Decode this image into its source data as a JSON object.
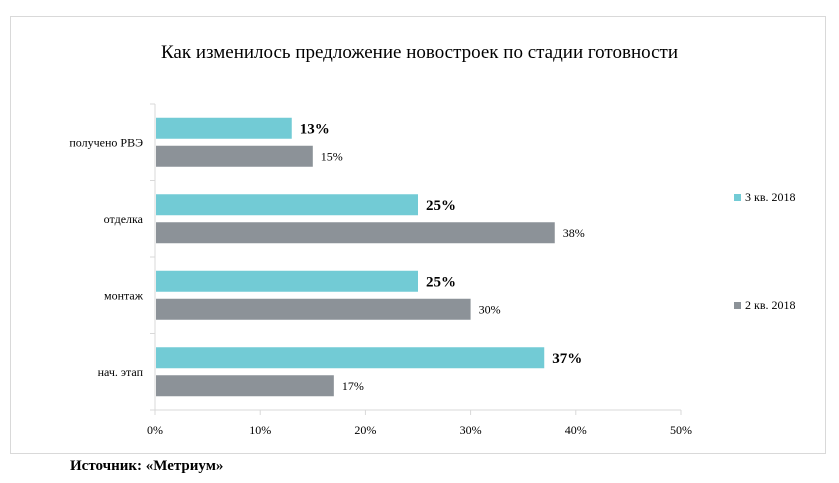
{
  "chart_data": {
    "type": "bar",
    "orientation": "horizontal",
    "title": "Как изменилось предложение новостроек по стадии готовности",
    "categories": [
      "получено РВЭ",
      "отделка",
      "монтаж",
      "нач. этап"
    ],
    "series": [
      {
        "name": "3 кв. 2018",
        "values": [
          13,
          25,
          25,
          37
        ],
        "color": "#72cbd5",
        "labels": [
          "13%",
          "25%",
          "25%",
          "37%"
        ],
        "label_bold": true
      },
      {
        "name": "2 кв. 2018",
        "values": [
          15,
          38,
          30,
          17
        ],
        "color": "#8c9298",
        "labels": [
          "15%",
          "38%",
          "30%",
          "17%"
        ],
        "label_bold": false
      }
    ],
    "x_ticks": [
      0,
      10,
      20,
      30,
      40,
      50
    ],
    "x_tick_labels": [
      "0%",
      "10%",
      "20%",
      "30%",
      "40%",
      "50%"
    ],
    "xlim": [
      0,
      50
    ],
    "grid": false,
    "legend_position": "right"
  },
  "source": "Источник: «Метриум»"
}
